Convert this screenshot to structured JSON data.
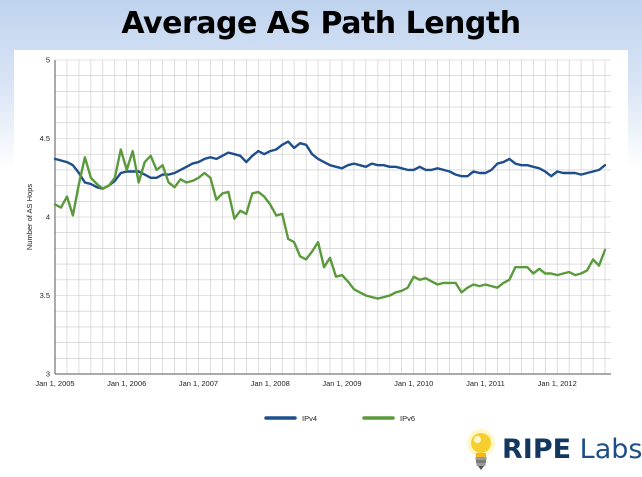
{
  "slide": {
    "title": "Average AS Path Length"
  },
  "logo": {
    "brand_strong": "RIPE",
    "brand_light": " Labs"
  },
  "colors": {
    "ipv4": "#1f4e8c",
    "ipv6": "#5b9a3c",
    "grid": "#c8c8c8"
  },
  "chart_data": {
    "type": "line",
    "title": "",
    "xlabel": "",
    "ylabel": "Number of AS Hops",
    "xlim": [
      "2005-01-01",
      "2012-10-01"
    ],
    "ylim": [
      3,
      5
    ],
    "yticks": [
      "3",
      "3.5",
      "4",
      "4.5",
      "5"
    ],
    "xticks": [
      "Jan 1, 2005",
      "Jan 1, 2006",
      "Jan 1, 2007",
      "Jan 1, 2008",
      "Jan 1, 2009",
      "Jan 1, 2010",
      "Jan 1, 2011",
      "Jan 1, 2012"
    ],
    "grid": true,
    "legend_position": "bottom-center",
    "x": [
      "2005-01",
      "2005-02",
      "2005-03",
      "2005-04",
      "2005-05",
      "2005-06",
      "2005-07",
      "2005-08",
      "2005-09",
      "2005-10",
      "2005-11",
      "2005-12",
      "2006-01",
      "2006-02",
      "2006-03",
      "2006-04",
      "2006-05",
      "2006-06",
      "2006-07",
      "2006-08",
      "2006-09",
      "2006-10",
      "2006-11",
      "2006-12",
      "2007-01",
      "2007-02",
      "2007-03",
      "2007-04",
      "2007-05",
      "2007-06",
      "2007-07",
      "2007-08",
      "2007-09",
      "2007-10",
      "2007-11",
      "2007-12",
      "2008-01",
      "2008-02",
      "2008-03",
      "2008-04",
      "2008-05",
      "2008-06",
      "2008-07",
      "2008-08",
      "2008-09",
      "2008-10",
      "2008-11",
      "2008-12",
      "2009-01",
      "2009-02",
      "2009-03",
      "2009-04",
      "2009-05",
      "2009-06",
      "2009-07",
      "2009-08",
      "2009-09",
      "2009-10",
      "2009-11",
      "2009-12",
      "2010-01",
      "2010-02",
      "2010-03",
      "2010-04",
      "2010-05",
      "2010-06",
      "2010-07",
      "2010-08",
      "2010-09",
      "2010-10",
      "2010-11",
      "2010-12",
      "2011-01",
      "2011-02",
      "2011-03",
      "2011-04",
      "2011-05",
      "2011-06",
      "2011-07",
      "2011-08",
      "2011-09",
      "2011-10",
      "2011-11",
      "2011-12",
      "2012-01",
      "2012-02",
      "2012-03",
      "2012-04",
      "2012-05",
      "2012-06",
      "2012-07",
      "2012-08",
      "2012-09"
    ],
    "series": [
      {
        "name": "IPv4",
        "values": [
          4.37,
          4.36,
          4.35,
          4.33,
          4.28,
          4.22,
          4.21,
          4.19,
          4.18,
          4.2,
          4.23,
          4.28,
          4.29,
          4.29,
          4.29,
          4.27,
          4.25,
          4.25,
          4.27,
          4.27,
          4.28,
          4.3,
          4.32,
          4.34,
          4.35,
          4.37,
          4.38,
          4.37,
          4.39,
          4.41,
          4.4,
          4.39,
          4.35,
          4.39,
          4.42,
          4.4,
          4.42,
          4.43,
          4.46,
          4.48,
          4.44,
          4.47,
          4.46,
          4.4,
          4.37,
          4.35,
          4.33,
          4.32,
          4.31,
          4.33,
          4.34,
          4.33,
          4.32,
          4.34,
          4.33,
          4.33,
          4.32,
          4.32,
          4.31,
          4.3,
          4.3,
          4.32,
          4.3,
          4.3,
          4.31,
          4.3,
          4.29,
          4.27,
          4.26,
          4.26,
          4.29,
          4.28,
          4.28,
          4.3,
          4.34,
          4.35,
          4.37,
          4.34,
          4.33,
          4.33,
          4.32,
          4.31,
          4.29,
          4.26,
          4.29,
          4.28,
          4.28,
          4.28,
          4.27,
          4.28,
          4.29,
          4.3,
          4.33
        ]
      },
      {
        "name": "IPv6",
        "values": [
          4.08,
          4.06,
          4.13,
          4.01,
          4.21,
          4.38,
          4.25,
          4.21,
          4.18,
          4.2,
          4.25,
          4.43,
          4.3,
          4.42,
          4.22,
          4.35,
          4.39,
          4.3,
          4.33,
          4.22,
          4.19,
          4.24,
          4.22,
          4.23,
          4.25,
          4.28,
          4.25,
          4.11,
          4.15,
          4.16,
          3.99,
          4.04,
          4.02,
          4.15,
          4.16,
          4.13,
          4.08,
          4.01,
          4.02,
          3.86,
          3.84,
          3.75,
          3.73,
          3.78,
          3.84,
          3.68,
          3.74,
          3.62,
          3.63,
          3.59,
          3.54,
          3.52,
          3.5,
          3.49,
          3.48,
          3.49,
          3.5,
          3.52,
          3.53,
          3.55,
          3.62,
          3.6,
          3.61,
          3.59,
          3.57,
          3.58,
          3.58,
          3.58,
          3.52,
          3.55,
          3.57,
          3.56,
          3.57,
          3.56,
          3.55,
          3.58,
          3.6,
          3.68,
          3.68,
          3.68,
          3.64,
          3.67,
          3.64,
          3.64,
          3.63,
          3.64,
          3.65,
          3.63,
          3.64,
          3.66,
          3.73,
          3.69,
          3.79
        ]
      }
    ]
  }
}
